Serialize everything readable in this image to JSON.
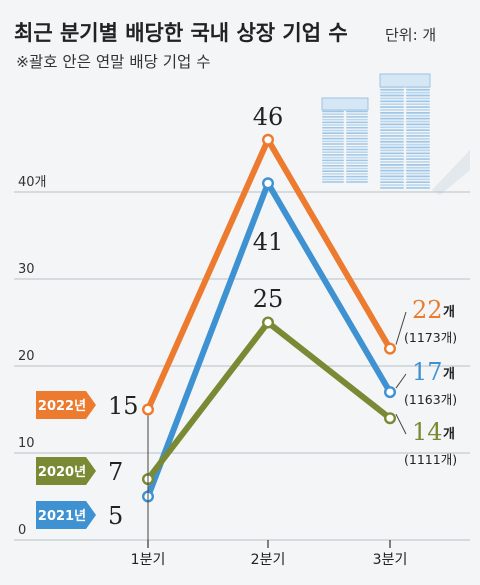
{
  "title": "최근 분기별 배당한 국내 상장 기업 수",
  "unit": "단위: 개",
  "subtitle": "※괄호 안은 연말 배당 기업 수",
  "chart_data": {
    "type": "line",
    "categories": [
      "1분기",
      "2분기",
      "3분기"
    ],
    "ylim": [
      0,
      46
    ],
    "yticks": [
      0,
      10,
      20,
      30,
      40
    ],
    "ytick_labels": [
      "0",
      "10",
      "20",
      "30",
      "40개"
    ],
    "grid": true,
    "series": [
      {
        "name": "2022년",
        "values": [
          15,
          46,
          22
        ],
        "color": "#ed7b2f",
        "end_label_num": "22",
        "end_label_unit": "개",
        "end_paren": "(1173개)"
      },
      {
        "name": "2021년",
        "values": [
          5,
          41,
          17
        ],
        "color": "#3f92d2",
        "end_label_num": "17",
        "end_label_unit": "개",
        "end_paren": "(1163개)"
      },
      {
        "name": "2020년",
        "values": [
          7,
          25,
          14
        ],
        "color": "#7a8a34",
        "end_label_num": "14",
        "end_label_unit": "개",
        "end_paren": "(1111개)"
      }
    ]
  }
}
